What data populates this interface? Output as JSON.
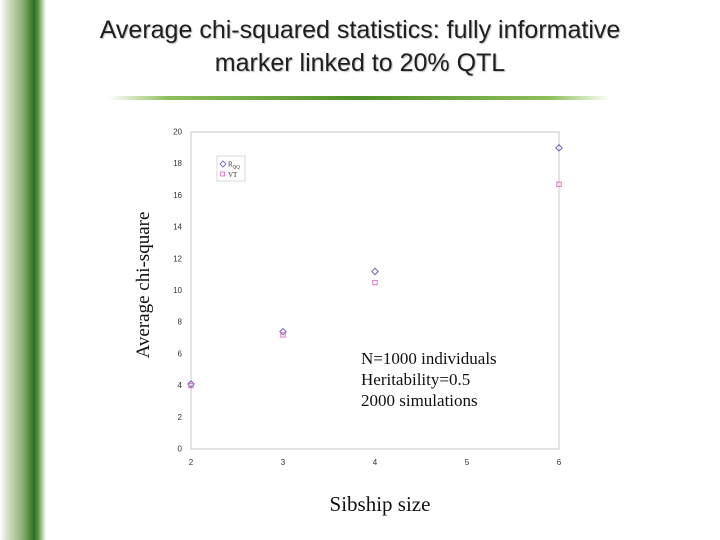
{
  "title": "Average chi-squared statistics: fully informative marker linked to 20% QTL",
  "chart_data": {
    "type": "scatter",
    "title": "Average chi-squared statistics: fully informative marker linked to 20% QTL",
    "xlabel": "Sibship size",
    "ylabel": "Average chi-square",
    "xlim": [
      2,
      6
    ],
    "ylim": [
      0,
      20
    ],
    "xticks": [
      2,
      3,
      4,
      5,
      6
    ],
    "yticks": [
      0,
      2,
      4,
      6,
      8,
      10,
      12,
      14,
      16,
      18,
      20
    ],
    "grid": false,
    "legend_position": "top-left",
    "series": [
      {
        "name": "R",
        "name_subscript": "QQ",
        "marker": "diamond",
        "color": "#5b57b5",
        "x": [
          2,
          3,
          4,
          6
        ],
        "y": [
          4.1,
          7.4,
          11.2,
          19.0
        ]
      },
      {
        "name": "VT",
        "marker": "square",
        "color": "#d86ac4",
        "x": [
          2,
          3,
          4,
          6
        ],
        "y": [
          4.0,
          7.2,
          10.5,
          16.7
        ]
      }
    ],
    "annotations": [
      "N=1000 individuals",
      "Heritability=0.5",
      "2000 simulations"
    ]
  }
}
